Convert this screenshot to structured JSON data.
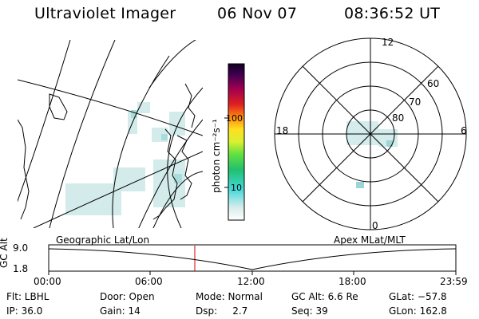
{
  "header": {
    "title": "Ultraviolet Imager",
    "date": "06 Nov 07",
    "time": "08:36:52 UT"
  },
  "colorbar": {
    "unit_label": "photon cm⁻²s⁻¹",
    "ticks": [
      "100",
      "10"
    ]
  },
  "polar": {
    "mlt_labels": {
      "top": "12",
      "right": "6",
      "bottom": "0",
      "left": "18"
    },
    "lat_labels": [
      "60",
      "70",
      "80"
    ]
  },
  "panels": {
    "left_caption": "Geographic Lat/Lon",
    "right_caption": "Apex MLat/MLT"
  },
  "altitude_plot": {
    "ylabel": "GC Alt",
    "yticks": [
      "9.0",
      "1.8"
    ],
    "xticks": [
      "00:00",
      "06:00",
      "12:00",
      "18:00",
      "23:59"
    ]
  },
  "status": [
    [
      "Flt: LBHL",
      "Door: Open",
      "Mode: Normal",
      "GC Alt: 6.6 Re",
      "GLat: −57.8"
    ],
    [
      "IP: 36.0",
      "Gain: 14",
      "Dsp:     2.7",
      "Seq: 39",
      "GLon: 162.8"
    ]
  ]
}
